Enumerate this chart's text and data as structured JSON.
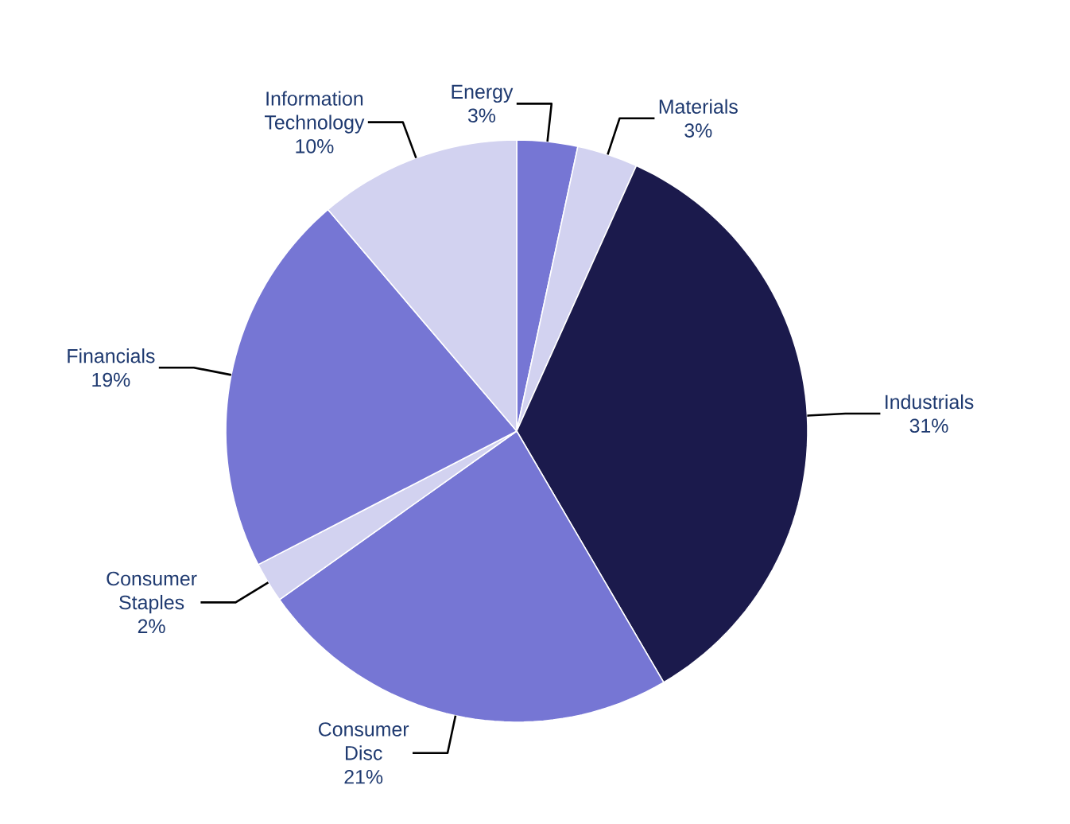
{
  "chart_data": {
    "type": "pie",
    "categories": [
      "Energy",
      "Materials",
      "Industrials",
      "Consumer Disc",
      "Consumer Staples",
      "Financials",
      "Information Technology"
    ],
    "values": [
      3,
      3,
      31,
      21,
      2,
      19,
      10
    ],
    "value_labels": [
      "3%",
      "3%",
      "31%",
      "21%",
      "2%",
      "19%",
      "10%"
    ],
    "colors": [
      "#7676d4",
      "#d2d2f0",
      "#1b1a4c",
      "#7676d4",
      "#d2d2f0",
      "#7676d4",
      "#d2d2f0"
    ]
  }
}
